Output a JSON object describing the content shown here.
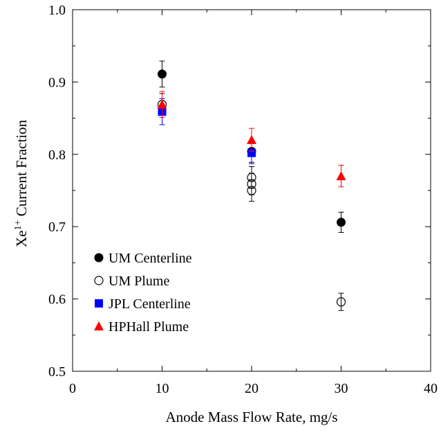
{
  "chart_data": {
    "type": "scatter",
    "xlabel": "Anode Mass Flow Rate, mg/s",
    "ylabel": {
      "prefix": "Xe",
      "superscript": "1+",
      "suffix": " Current Fraction"
    },
    "xlim": [
      0,
      40
    ],
    "ylim": [
      0.5,
      1.0
    ],
    "x_ticks": [
      "0",
      "10",
      "20",
      "30",
      "40"
    ],
    "y_ticks": [
      "0.5",
      "0.6",
      "0.7",
      "0.8",
      "0.9",
      "1.0"
    ],
    "grid": false,
    "legend_position": "bottom-left",
    "series": [
      {
        "name": "UM Centerline",
        "marker": "filled-circle",
        "color": "#000000",
        "points": [
          {
            "x": 10,
            "y": 0.911,
            "err": 0.018
          },
          {
            "x": 20,
            "y": 0.804,
            "err": 0.015
          },
          {
            "x": 30,
            "y": 0.706,
            "err": 0.014
          }
        ]
      },
      {
        "name": "UM Plume",
        "marker": "open-circle",
        "color": "#000000",
        "points": [
          {
            "x": 10,
            "y": 0.869,
            "err": 0.015
          },
          {
            "x": 20,
            "y": 0.768,
            "err": 0.015
          },
          {
            "x": 20,
            "y": 0.759,
            "err": 0.015
          },
          {
            "x": 20,
            "y": 0.75,
            "err": 0.015
          },
          {
            "x": 30,
            "y": 0.596,
            "err": 0.012
          }
        ]
      },
      {
        "name": "JPL Centerline",
        "marker": "filled-square",
        "color": "#0000ff",
        "points": [
          {
            "x": 10,
            "y": 0.859,
            "err": 0.018
          },
          {
            "x": 20,
            "y": 0.802,
            "err": 0.015
          }
        ]
      },
      {
        "name": "HPHall Plume",
        "marker": "filled-triangle",
        "color": "#ff0000",
        "points": [
          {
            "x": 10,
            "y": 0.869,
            "err": 0.018
          },
          {
            "x": 20,
            "y": 0.82,
            "err": 0.016
          },
          {
            "x": 30,
            "y": 0.77,
            "err": 0.015
          }
        ]
      }
    ]
  }
}
